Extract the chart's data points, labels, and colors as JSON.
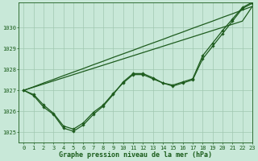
{
  "xlabel": "Graphe pression niveau de la mer (hPa)",
  "bg_color": "#c8e8d8",
  "grid_color": "#a0c8b0",
  "line_color": "#1e5c1e",
  "xlim": [
    -0.5,
    23
  ],
  "ylim": [
    1024.5,
    1031.2
  ],
  "yticks": [
    1025,
    1026,
    1027,
    1028,
    1029,
    1030
  ],
  "xticks": [
    0,
    1,
    2,
    3,
    4,
    5,
    6,
    7,
    8,
    9,
    10,
    11,
    12,
    13,
    14,
    15,
    16,
    17,
    18,
    19,
    20,
    21,
    22,
    23
  ],
  "series_straight1": [
    1027.0,
    1027.17,
    1027.35,
    1027.52,
    1027.7,
    1027.87,
    1028.04,
    1028.22,
    1028.39,
    1028.57,
    1028.74,
    1028.91,
    1029.09,
    1029.26,
    1029.43,
    1029.61,
    1029.78,
    1029.96,
    1030.13,
    1030.3,
    1030.48,
    1030.65,
    1030.83,
    1031.0
  ],
  "series_straight2": [
    1027.0,
    1027.15,
    1027.3,
    1027.45,
    1027.6,
    1027.75,
    1027.9,
    1028.05,
    1028.2,
    1028.35,
    1028.5,
    1028.65,
    1028.8,
    1028.95,
    1029.1,
    1029.25,
    1029.4,
    1029.55,
    1029.7,
    1029.85,
    1030.0,
    1030.15,
    1030.3,
    1031.0
  ],
  "series_dip1": [
    1027.0,
    1026.8,
    1026.3,
    1025.9,
    1025.3,
    1025.15,
    1025.45,
    1025.95,
    1026.3,
    1026.85,
    1027.35,
    1027.75,
    1027.75,
    1027.55,
    1027.35,
    1027.25,
    1027.4,
    1027.55,
    1028.65,
    1029.25,
    1029.85,
    1030.4,
    1030.95,
    1031.2
  ],
  "series_dip2": [
    1027.0,
    1026.75,
    1026.2,
    1025.85,
    1025.2,
    1025.05,
    1025.35,
    1025.85,
    1026.25,
    1026.8,
    1027.4,
    1027.8,
    1027.8,
    1027.6,
    1027.35,
    1027.2,
    1027.35,
    1027.5,
    1028.5,
    1029.1,
    1029.7,
    1030.3,
    1030.9,
    1031.15
  ],
  "font_color": "#1a5c1a",
  "tick_fontsize": 5.0,
  "label_fontsize": 6.0
}
